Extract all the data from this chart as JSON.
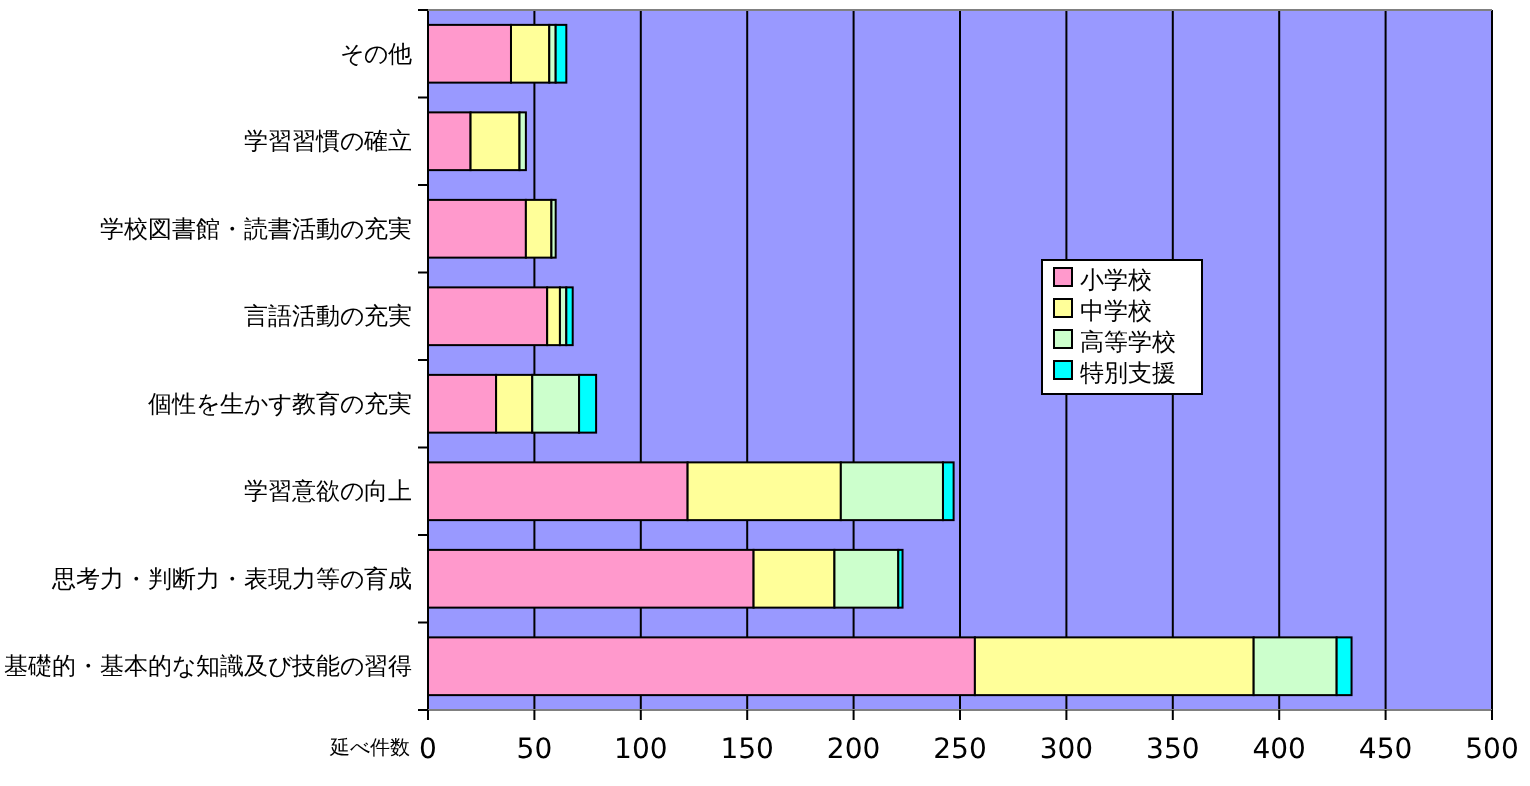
{
  "chart_data": {
    "type": "bar",
    "orientation": "horizontal",
    "stacked": true,
    "categories": [
      "その他",
      "学習習慣の確立",
      "学校図書館・読書活動の充実",
      "言語活動の充実",
      "個性を生かす教育の充実",
      "学習意欲の向上",
      "思考力・判断力・表現力等の育成",
      "基礎的・基本的な知識及び技能の習得"
    ],
    "series": [
      {
        "name": "小学校",
        "color": "#ff99cc",
        "values": [
          39,
          20,
          46,
          56,
          32,
          122,
          153,
          257
        ]
      },
      {
        "name": "中学校",
        "color": "#ffff99",
        "values": [
          18,
          23,
          12,
          6,
          17,
          72,
          38,
          131
        ]
      },
      {
        "name": "高等学校",
        "color": "#ccffcc",
        "values": [
          3,
          3,
          2,
          3,
          22,
          48,
          30,
          39
        ]
      },
      {
        "name": "特別支援",
        "color": "#00ffff",
        "values": [
          5,
          0,
          0,
          3,
          8,
          5,
          2,
          7
        ]
      }
    ],
    "xlabel": "延べ件数",
    "xlim": [
      0,
      500
    ],
    "xticks": [
      0,
      50,
      100,
      150,
      200,
      250,
      300,
      350,
      400,
      450,
      500
    ],
    "grid": "x",
    "legend": "right"
  }
}
